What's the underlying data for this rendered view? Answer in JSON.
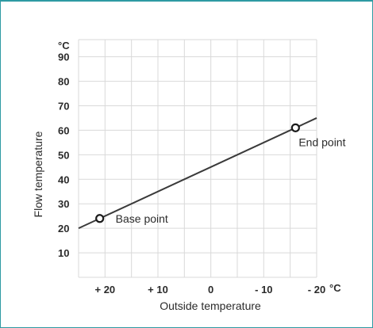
{
  "chart_data": {
    "type": "line",
    "xlabel": "Outside temperature",
    "ylabel": "Flow temperature",
    "y_unit": "°C",
    "x_unit": "°C",
    "xlim": [
      25,
      -20
    ],
    "ylim": [
      0,
      97
    ],
    "x_ticks": [
      20,
      10,
      0,
      -10,
      -20
    ],
    "x_tick_labels": [
      "+ 20",
      "+ 10",
      "0",
      "- 10",
      "- 20"
    ],
    "y_ticks": [
      10,
      20,
      30,
      40,
      50,
      60,
      70,
      80,
      90
    ],
    "y_tick_labels": [
      "10",
      "20",
      "30",
      "40",
      "50",
      "60",
      "70",
      "80",
      "90"
    ],
    "series": [
      {
        "x": [
          25,
          -20
        ],
        "y": [
          20,
          65
        ]
      }
    ],
    "points": [
      {
        "label": "Base point",
        "x": 21,
        "y": 24
      },
      {
        "label": "End point",
        "x": -16,
        "y": 61
      }
    ],
    "grid": true,
    "colors": {
      "line": "#3a3a3a",
      "grid": "#d9d9d9",
      "frame": "#2e9aa3"
    }
  }
}
